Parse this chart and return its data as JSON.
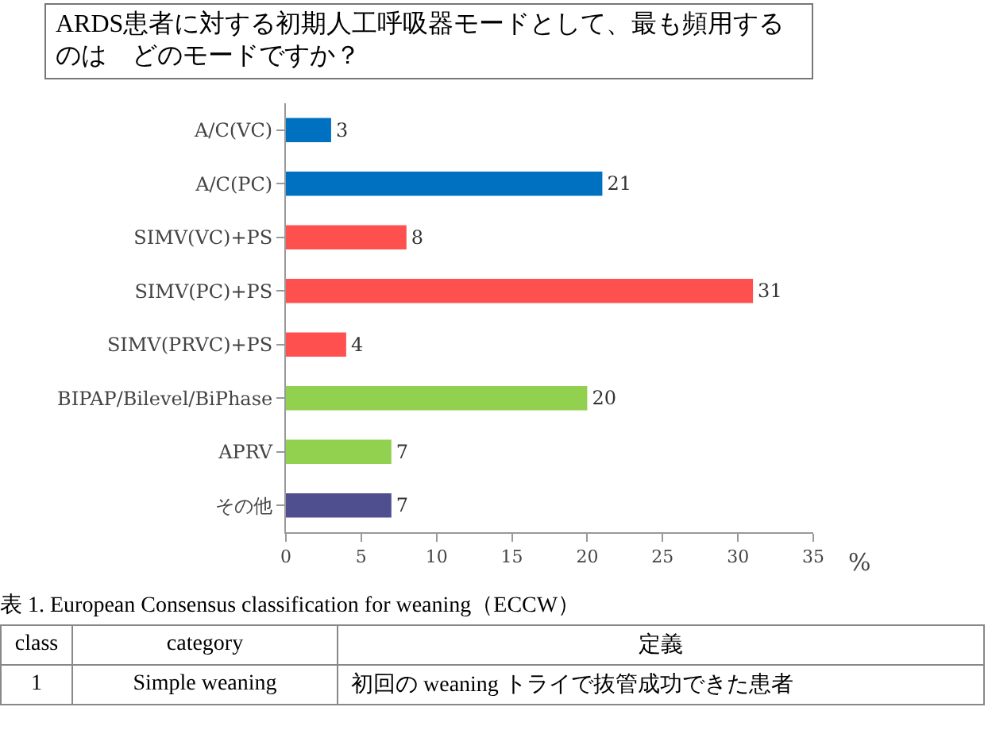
{
  "chart_data": {
    "type": "bar",
    "orientation": "horizontal",
    "title": "ARDS患者に対する初期人工呼吸器モードとして、最も頻用するのは　どのモードですか？",
    "categories": [
      "A/C(VC)",
      "A/C(PC)",
      "SIMV(VC)+PS",
      "SIMV(PC)+PS",
      "SIMV(PRVC)+PS",
      "BIPAP/Bilevel/BiPhase",
      "APRV",
      "その他"
    ],
    "values": [
      3,
      21,
      8,
      31,
      4,
      20,
      7,
      7
    ],
    "colors": [
      "#0070c0",
      "#0070c0",
      "#ff5050",
      "#ff5050",
      "#ff5050",
      "#92d050",
      "#92d050",
      "#4f4f8f"
    ],
    "xlim": [
      0,
      35
    ],
    "xticks": [
      0,
      5,
      10,
      15,
      20,
      25,
      30,
      35
    ],
    "xlabel": "%",
    "data_labels": true,
    "grid": false,
    "annotations": [
      "表 1. European Consensus classification for weaning（ECCW）",
      "class",
      "category",
      "定義",
      "1",
      "Simple weaning",
      "初回の weaning トライで抜管成功できた患者"
    ]
  }
}
